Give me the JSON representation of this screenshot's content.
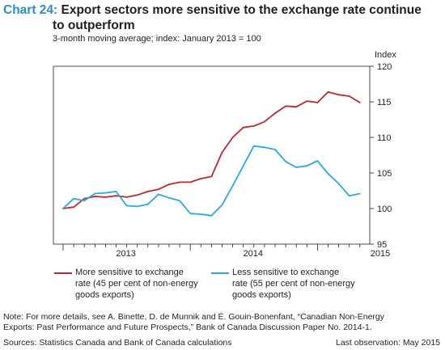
{
  "header": {
    "chart_number": "Chart 24:",
    "title_line1": "Export sectors more sensitive to the exchange rate continue",
    "title_line2": "to outperform",
    "subtitle": "3-month moving average; index: January 2013 = 100"
  },
  "footer": {
    "note_line1": "Note: For more details, see A. Binette, D. de Munnik and É. Gouin-Bonenfant, “Canadian Non-Energy",
    "note_line2": "Exports: Past Performance and Future Prospects,” Bank of Canada Discussion Paper No. 2014-1.",
    "sources": "Sources: Statistics Canada and Bank of Canada calculations",
    "last_observation": "Last observation: May 2015"
  },
  "colors": {
    "more_sensitive": "#c1272d",
    "less_sensitive": "#27aae1",
    "title_accent": "#2a8fc4"
  },
  "chart_data": {
    "type": "line",
    "ylabel": "Index",
    "ylim": [
      95,
      120
    ],
    "yticks": [
      95,
      100,
      105,
      110,
      115,
      120
    ],
    "x_tick_labels": [
      "2013",
      "2014",
      "2015"
    ],
    "x": [
      "2013-01",
      "2013-02",
      "2013-03",
      "2013-04",
      "2013-05",
      "2013-06",
      "2013-07",
      "2013-08",
      "2013-09",
      "2013-10",
      "2013-11",
      "2013-12",
      "2014-01",
      "2014-02",
      "2014-03",
      "2014-04",
      "2014-05",
      "2014-06",
      "2014-07",
      "2014-08",
      "2014-09",
      "2014-10",
      "2014-11",
      "2014-12",
      "2015-01",
      "2015-02",
      "2015-03",
      "2015-04",
      "2015-05"
    ],
    "series": [
      {
        "name": "More sensitive to exchange rate (45 per cent of non-energy goods exports)",
        "legend_line1": "More sensitive to exchange",
        "legend_line2": "rate (45 per cent of non-energy",
        "legend_line3": "goods exports)",
        "color": "#c1272d",
        "values": [
          100.0,
          100.2,
          101.4,
          101.7,
          101.6,
          101.8,
          101.6,
          101.9,
          102.4,
          102.7,
          103.4,
          103.7,
          103.7,
          104.2,
          104.5,
          107.9,
          110.0,
          111.4,
          111.6,
          112.2,
          113.4,
          114.4,
          114.3,
          115.1,
          114.9,
          116.4,
          116.0,
          115.8,
          114.9
        ]
      },
      {
        "name": "Less sensitive to exchange rate (55 per cent of non-energy goods exports)",
        "legend_line1": "Less sensitive to exchange",
        "legend_line2": "rate (55 per cent of non-energy",
        "legend_line3": "goods exports)",
        "color": "#27aae1",
        "values": [
          100.0,
          101.4,
          101.1,
          102.1,
          102.2,
          102.4,
          100.4,
          100.3,
          100.6,
          102.0,
          101.5,
          101.1,
          99.3,
          99.2,
          99.0,
          100.5,
          103.2,
          106.0,
          108.8,
          108.6,
          108.3,
          106.6,
          105.8,
          106.0,
          106.7,
          104.9,
          103.5,
          101.8,
          102.1
        ]
      }
    ]
  }
}
